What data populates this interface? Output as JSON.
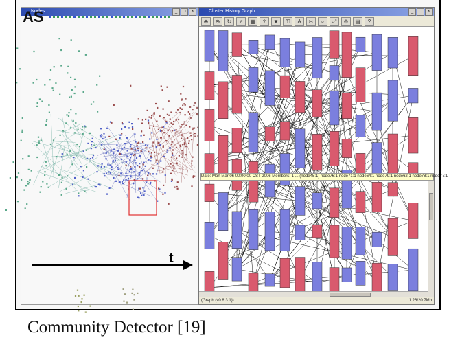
{
  "logo_text": "AS",
  "left_window": {
    "title": "Nodes"
  },
  "right_window": {
    "title": "Cluster History Graph",
    "toolbar_icons": [
      "zoom-in-icon",
      "zoom-out-icon",
      "refresh-icon",
      "arrow-icon",
      "layout-icon",
      "export-icon",
      "filter-icon",
      "lock-icon",
      "label-icon",
      "cut-icon",
      "zoom-icon",
      "fit-icon",
      "settings-icon",
      "grid-icon",
      "help-icon"
    ],
    "tooltip": "Date: Mon Mar 06 00:00:00 CST 2006  Members: 1 ... (node45:1) node76:1 node71:1 node64:1 node79:1 node62:1 node78:1 node77:1",
    "status_left": "(Graph (v0.8.3.1))",
    "status_right": "1.26/20.7Mb"
  },
  "axis_label": "t",
  "caption": "Community Detector [19]",
  "colors": {
    "blue": "#7b7fde",
    "red": "#d95a6e",
    "green": "#5aa88a",
    "dark_red": "#9a4b4b"
  }
}
